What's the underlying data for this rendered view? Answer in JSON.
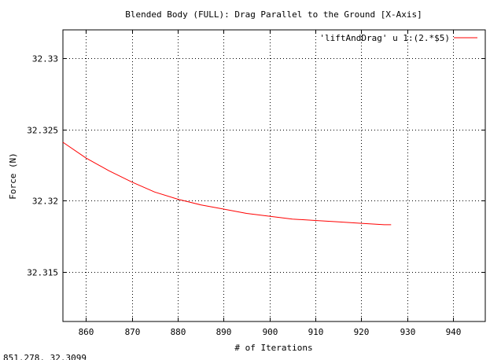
{
  "chart_data": {
    "type": "line",
    "title": "Blended Body (FULL): Drag Parallel to the Ground [X-Axis]",
    "xlabel": "# of Iterations",
    "ylabel": "Force (N)",
    "xlim": [
      855,
      947
    ],
    "ylim": [
      32.3115,
      32.332
    ],
    "x_ticks": [
      860,
      870,
      880,
      890,
      900,
      910,
      920,
      930,
      940
    ],
    "x_tick_labels": [
      "860",
      "870",
      "880",
      "890",
      "900",
      "910",
      "920",
      "930",
      "940"
    ],
    "y_ticks": [
      32.315,
      32.32,
      32.325,
      32.33
    ],
    "y_tick_labels": [
      "32.315",
      "32.32",
      "32.325",
      "32.33"
    ],
    "grid": true,
    "legend_position": "top-right",
    "series": [
      {
        "name": "'liftAndDrag' u 1:(2.*$5)",
        "color": "#ff0000",
        "x": [
          855,
          860,
          865,
          870,
          875,
          880,
          885,
          890,
          895,
          900,
          905,
          910,
          915,
          920,
          925,
          926.5
        ],
        "y": [
          32.3241,
          32.323,
          32.3221,
          32.3213,
          32.3206,
          32.3201,
          32.3197,
          32.3194,
          32.3191,
          32.3189,
          32.3187,
          32.3186,
          32.3185,
          32.3184,
          32.3183,
          32.3183
        ]
      }
    ]
  },
  "status_bar": {
    "coordinates": "851.278,  32.3099"
  }
}
